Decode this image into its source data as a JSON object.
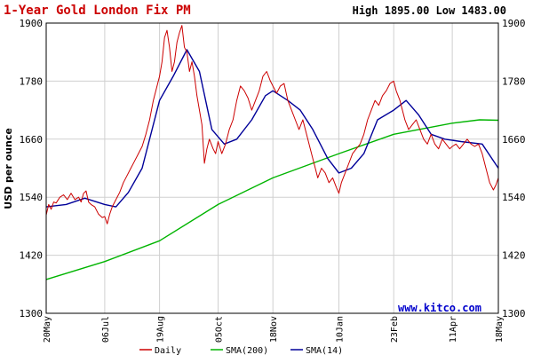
{
  "chart_data": {
    "type": "line",
    "title": "1-Year Gold London Fix PM",
    "stats": "High 1895.00 Low 1483.00",
    "ylabel": "USD per ounce",
    "xlabel": "",
    "watermark": "www.kitco.com",
    "ylim": [
      1300,
      1900
    ],
    "yticks": [
      1300,
      1420,
      1540,
      1660,
      1780,
      1900
    ],
    "ytick_labels": [
      "1300",
      "1420",
      "1540",
      "1660",
      "1780",
      "1900"
    ],
    "xlim": [
      "2010-05-20",
      "2011-05-18"
    ],
    "xticks": [
      "2010-05-20",
      "2010-07-06",
      "2010-08-19",
      "2010-10-05",
      "2010-11-18",
      "2011-01-10",
      "2011-02-23",
      "2011-04-11",
      "2011-05-18"
    ],
    "xtick_labels": [
      "20May",
      "06Jul",
      "19Aug",
      "05Oct",
      "18Nov",
      "10Jan",
      "23Feb",
      "11Apr",
      "18May"
    ],
    "grid": true,
    "legend_placement": "bottom",
    "colors": {
      "title": "#cc0000",
      "daily": "#cc0000",
      "sma200": "#00b400",
      "sma14": "#000099",
      "watermark": "#0000cc",
      "grid": "#d0d0d0",
      "frame": "#000000",
      "plot_bg": "#ffffff",
      "page_bg": "#ffffff"
    },
    "series": [
      {
        "name": "Daily",
        "key": "daily",
        "points": [
          [
            "2010-05-20",
            1503
          ],
          [
            "2010-05-22",
            1525
          ],
          [
            "2010-05-24",
            1515
          ],
          [
            "2010-05-26",
            1530
          ],
          [
            "2010-05-28",
            1528
          ],
          [
            "2010-05-31",
            1540
          ],
          [
            "2010-06-03",
            1545
          ],
          [
            "2010-06-06",
            1535
          ],
          [
            "2010-06-09",
            1548
          ],
          [
            "2010-06-12",
            1535
          ],
          [
            "2010-06-15",
            1540
          ],
          [
            "2010-06-17",
            1530
          ],
          [
            "2010-06-19",
            1548
          ],
          [
            "2010-06-21",
            1553
          ],
          [
            "2010-06-23",
            1530
          ],
          [
            "2010-06-25",
            1525
          ],
          [
            "2010-06-28",
            1520
          ],
          [
            "2010-07-01",
            1505
          ],
          [
            "2010-07-04",
            1498
          ],
          [
            "2010-07-06",
            1500
          ],
          [
            "2010-07-08",
            1485
          ],
          [
            "2010-07-10",
            1505
          ],
          [
            "2010-07-12",
            1520
          ],
          [
            "2010-07-15",
            1535
          ],
          [
            "2010-07-18",
            1550
          ],
          [
            "2010-07-21",
            1570
          ],
          [
            "2010-07-24",
            1585
          ],
          [
            "2010-07-27",
            1600
          ],
          [
            "2010-07-30",
            1615
          ],
          [
            "2010-08-02",
            1630
          ],
          [
            "2010-08-05",
            1645
          ],
          [
            "2010-08-08",
            1670
          ],
          [
            "2010-08-11",
            1700
          ],
          [
            "2010-08-14",
            1740
          ],
          [
            "2010-08-17",
            1770
          ],
          [
            "2010-08-19",
            1790
          ],
          [
            "2010-08-21",
            1820
          ],
          [
            "2010-08-23",
            1870
          ],
          [
            "2010-08-25",
            1885
          ],
          [
            "2010-08-27",
            1850
          ],
          [
            "2010-08-29",
            1800
          ],
          [
            "2010-08-31",
            1820
          ],
          [
            "2010-09-02",
            1860
          ],
          [
            "2010-09-04",
            1880
          ],
          [
            "2010-09-06",
            1895
          ],
          [
            "2010-09-08",
            1850
          ],
          [
            "2010-09-10",
            1840
          ],
          [
            "2010-09-12",
            1800
          ],
          [
            "2010-09-14",
            1820
          ],
          [
            "2010-09-16",
            1790
          ],
          [
            "2010-09-18",
            1750
          ],
          [
            "2010-09-20",
            1720
          ],
          [
            "2010-09-22",
            1690
          ],
          [
            "2010-09-24",
            1610
          ],
          [
            "2010-09-26",
            1640
          ],
          [
            "2010-09-28",
            1660
          ],
          [
            "2010-10-01",
            1640
          ],
          [
            "2010-10-03",
            1630
          ],
          [
            "2010-10-05",
            1655
          ],
          [
            "2010-10-08",
            1630
          ],
          [
            "2010-10-11",
            1650
          ],
          [
            "2010-10-14",
            1680
          ],
          [
            "2010-10-17",
            1700
          ],
          [
            "2010-10-20",
            1740
          ],
          [
            "2010-10-23",
            1770
          ],
          [
            "2010-10-26",
            1760
          ],
          [
            "2010-10-29",
            1745
          ],
          [
            "2010-11-01",
            1720
          ],
          [
            "2010-11-04",
            1740
          ],
          [
            "2010-11-07",
            1760
          ],
          [
            "2010-11-10",
            1790
          ],
          [
            "2010-11-13",
            1800
          ],
          [
            "2010-11-16",
            1780
          ],
          [
            "2010-11-18",
            1770
          ],
          [
            "2010-11-21",
            1755
          ],
          [
            "2010-11-24",
            1770
          ],
          [
            "2010-11-27",
            1775
          ],
          [
            "2010-11-30",
            1740
          ],
          [
            "2010-12-03",
            1720
          ],
          [
            "2010-12-06",
            1700
          ],
          [
            "2010-12-09",
            1680
          ],
          [
            "2010-12-12",
            1700
          ],
          [
            "2010-12-15",
            1670
          ],
          [
            "2010-12-18",
            1640
          ],
          [
            "2010-12-21",
            1610
          ],
          [
            "2010-12-24",
            1580
          ],
          [
            "2010-12-27",
            1600
          ],
          [
            "2010-12-30",
            1590
          ],
          [
            "2011-01-02",
            1570
          ],
          [
            "2011-01-05",
            1580
          ],
          [
            "2011-01-08",
            1560
          ],
          [
            "2011-01-10",
            1548
          ],
          [
            "2011-01-12",
            1570
          ],
          [
            "2011-01-15",
            1590
          ],
          [
            "2011-01-18",
            1610
          ],
          [
            "2011-01-21",
            1630
          ],
          [
            "2011-01-24",
            1640
          ],
          [
            "2011-01-27",
            1650
          ],
          [
            "2011-01-30",
            1670
          ],
          [
            "2011-02-02",
            1700
          ],
          [
            "2011-02-05",
            1720
          ],
          [
            "2011-02-08",
            1740
          ],
          [
            "2011-02-11",
            1730
          ],
          [
            "2011-02-14",
            1750
          ],
          [
            "2011-02-17",
            1760
          ],
          [
            "2011-02-20",
            1775
          ],
          [
            "2011-02-23",
            1780
          ],
          [
            "2011-02-25",
            1760
          ],
          [
            "2011-02-28",
            1740
          ],
          [
            "2011-03-02",
            1720
          ],
          [
            "2011-03-04",
            1700
          ],
          [
            "2011-03-07",
            1680
          ],
          [
            "2011-03-10",
            1690
          ],
          [
            "2011-03-13",
            1700
          ],
          [
            "2011-03-16",
            1680
          ],
          [
            "2011-03-19",
            1660
          ],
          [
            "2011-03-22",
            1650
          ],
          [
            "2011-03-25",
            1670
          ],
          [
            "2011-03-28",
            1650
          ],
          [
            "2011-03-31",
            1640
          ],
          [
            "2011-04-03",
            1660
          ],
          [
            "2011-04-06",
            1650
          ],
          [
            "2011-04-09",
            1640
          ],
          [
            "2011-04-11",
            1645
          ],
          [
            "2011-04-14",
            1650
          ],
          [
            "2011-04-17",
            1640
          ],
          [
            "2011-04-20",
            1650
          ],
          [
            "2011-04-23",
            1660
          ],
          [
            "2011-04-26",
            1650
          ],
          [
            "2011-04-29",
            1645
          ],
          [
            "2011-05-02",
            1650
          ],
          [
            "2011-05-05",
            1630
          ],
          [
            "2011-05-08",
            1600
          ],
          [
            "2011-05-11",
            1570
          ],
          [
            "2011-05-14",
            1555
          ],
          [
            "2011-05-16",
            1565
          ],
          [
            "2011-05-18",
            1580
          ]
        ]
      },
      {
        "name": "SMA(200)",
        "key": "sma200",
        "points": [
          [
            "2010-05-20",
            1370
          ],
          [
            "2010-07-06",
            1407
          ],
          [
            "2010-08-19",
            1450
          ],
          [
            "2010-10-05",
            1525
          ],
          [
            "2010-11-18",
            1580
          ],
          [
            "2011-01-10",
            1630
          ],
          [
            "2011-02-23",
            1670
          ],
          [
            "2011-04-11",
            1693
          ],
          [
            "2011-05-03",
            1700
          ],
          [
            "2011-05-18",
            1699
          ]
        ]
      },
      {
        "name": "SMA(14)",
        "key": "sma14",
        "points": [
          [
            "2010-05-20",
            1520
          ],
          [
            "2010-06-05",
            1525
          ],
          [
            "2010-06-20",
            1538
          ],
          [
            "2010-07-06",
            1525
          ],
          [
            "2010-07-15",
            1520
          ],
          [
            "2010-07-25",
            1550
          ],
          [
            "2010-08-05",
            1600
          ],
          [
            "2010-08-19",
            1740
          ],
          [
            "2010-08-30",
            1790
          ],
          [
            "2010-09-10",
            1845
          ],
          [
            "2010-09-20",
            1800
          ],
          [
            "2010-09-30",
            1680
          ],
          [
            "2010-10-10",
            1650
          ],
          [
            "2010-10-20",
            1660
          ],
          [
            "2010-11-01",
            1700
          ],
          [
            "2010-11-12",
            1750
          ],
          [
            "2010-11-18",
            1760
          ],
          [
            "2010-11-30",
            1740
          ],
          [
            "2010-12-10",
            1720
          ],
          [
            "2010-12-20",
            1680
          ],
          [
            "2011-01-01",
            1620
          ],
          [
            "2011-01-10",
            1590
          ],
          [
            "2011-01-20",
            1600
          ],
          [
            "2011-01-30",
            1630
          ],
          [
            "2011-02-10",
            1700
          ],
          [
            "2011-02-23",
            1720
          ],
          [
            "2011-03-05",
            1740
          ],
          [
            "2011-03-15",
            1710
          ],
          [
            "2011-03-25",
            1670
          ],
          [
            "2011-04-05",
            1660
          ],
          [
            "2011-04-18",
            1655
          ],
          [
            "2011-05-05",
            1650
          ],
          [
            "2011-05-18",
            1600
          ]
        ]
      }
    ]
  }
}
